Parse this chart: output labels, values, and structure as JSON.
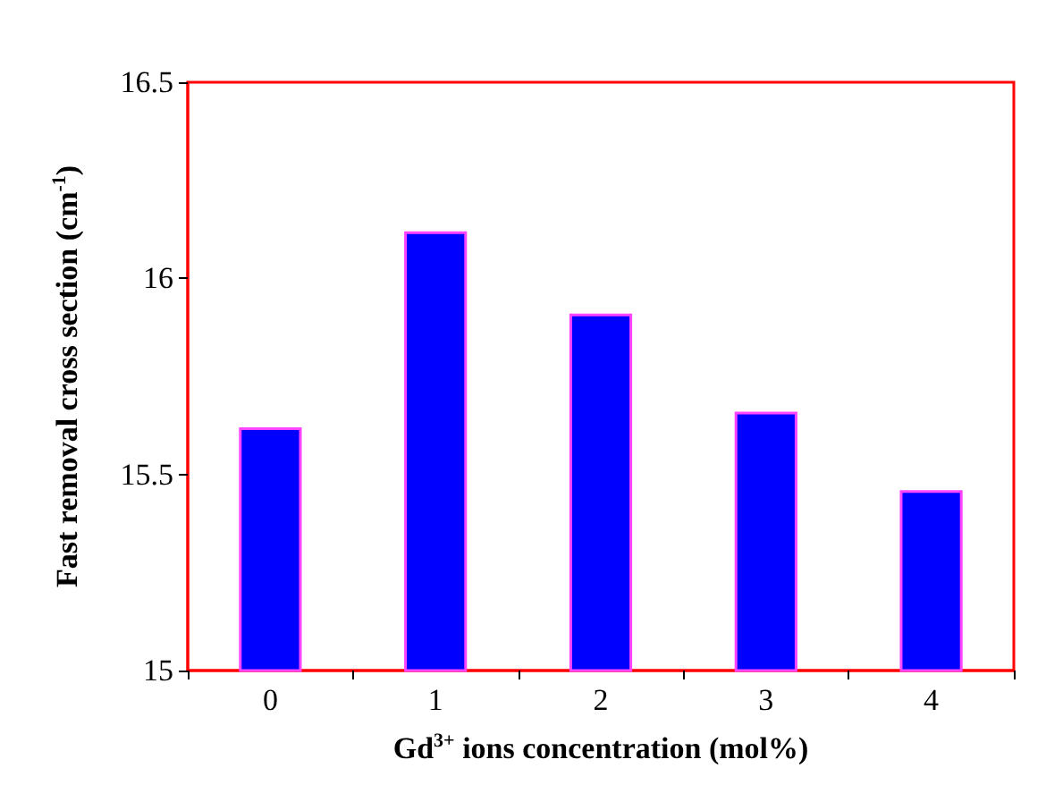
{
  "chart_data": {
    "type": "bar",
    "xlabel": "Gd$^{3+}$ ions concentration (mol%)",
    "ylabel": "Fast removal cross section (cm$^{-1}$)",
    "categories": [
      "0",
      "1",
      "2",
      "3",
      "4"
    ],
    "values": [
      15.62,
      16.12,
      15.91,
      15.66,
      15.46
    ],
    "color": "#0000ff",
    "ylim": [
      15,
      16.5
    ],
    "yticks": [
      15,
      15.5,
      16,
      16.5
    ],
    "grid": false
  }
}
